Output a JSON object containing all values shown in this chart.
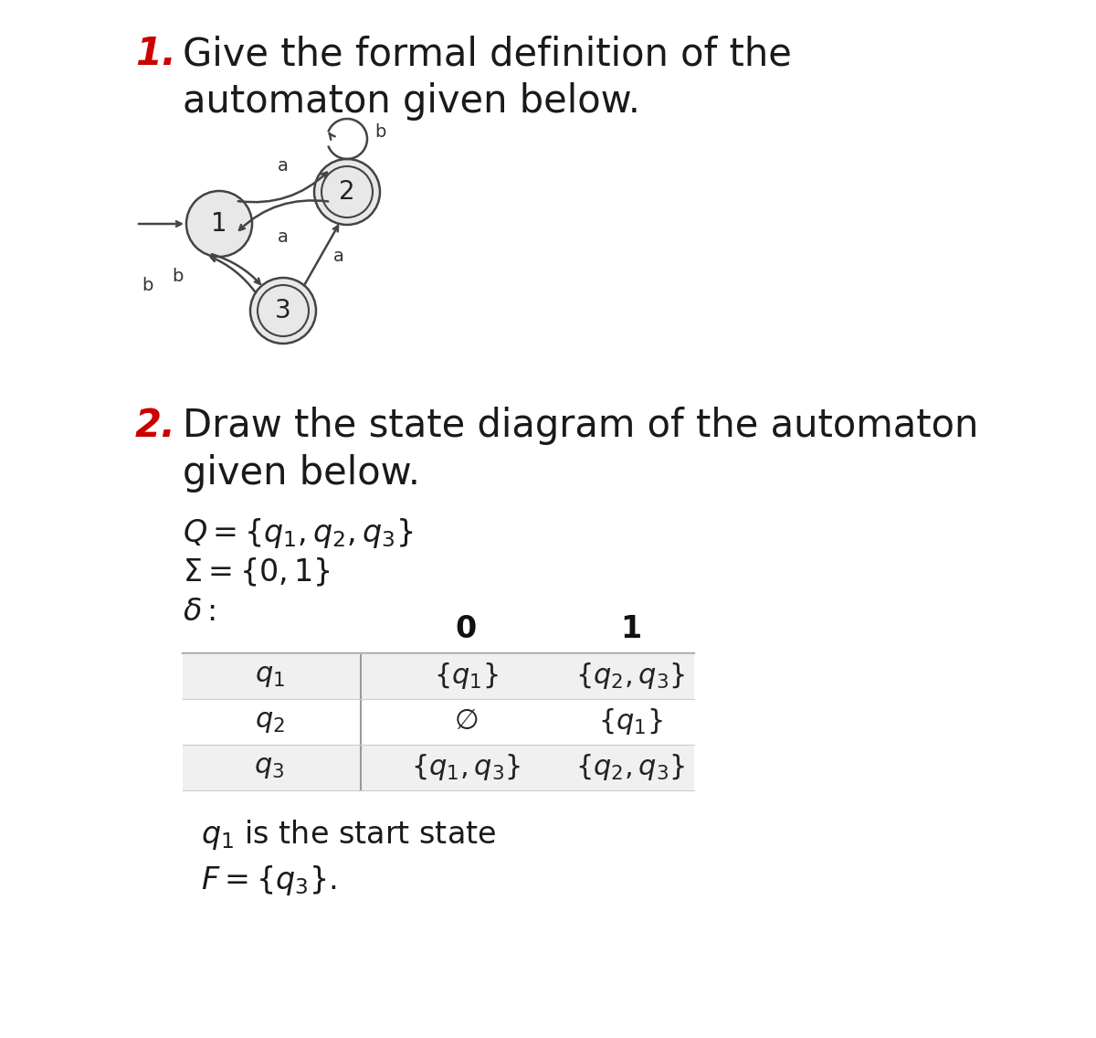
{
  "title1_num": "1.",
  "title1_text": "Give the formal definition of the\nautomaton given below.",
  "title2_num": "2.",
  "title2_text": "Draw the state diagram of the automaton\ngiven below.",
  "num_color": "#cc0000",
  "text_color": "#1a1a1a",
  "bg_color": "#ffffff",
  "node_fill": "#e8e8e8",
  "node_edge": "#444444",
  "arrow_color": "#444444",
  "math_lines": [
    "$Q = \\{q_1, q_2, q_3\\}$",
    "$\\Sigma = \\{0,1\\}$",
    "$\\delta:$"
  ],
  "row_labels": [
    "$q_1$",
    "$q_2$",
    "$q_3$"
  ],
  "col0_vals": [
    "$\\{q_1\\}$",
    "$\\emptyset$",
    "$\\{q_1, q_3\\}$"
  ],
  "col1_vals": [
    "$\\{q_2, q_3\\}$",
    "$\\{q_1\\}$",
    "$\\{q_2, q_3\\}$"
  ],
  "row_shading": [
    "#f0f0f0",
    "#ffffff",
    "#f0f0f0"
  ]
}
